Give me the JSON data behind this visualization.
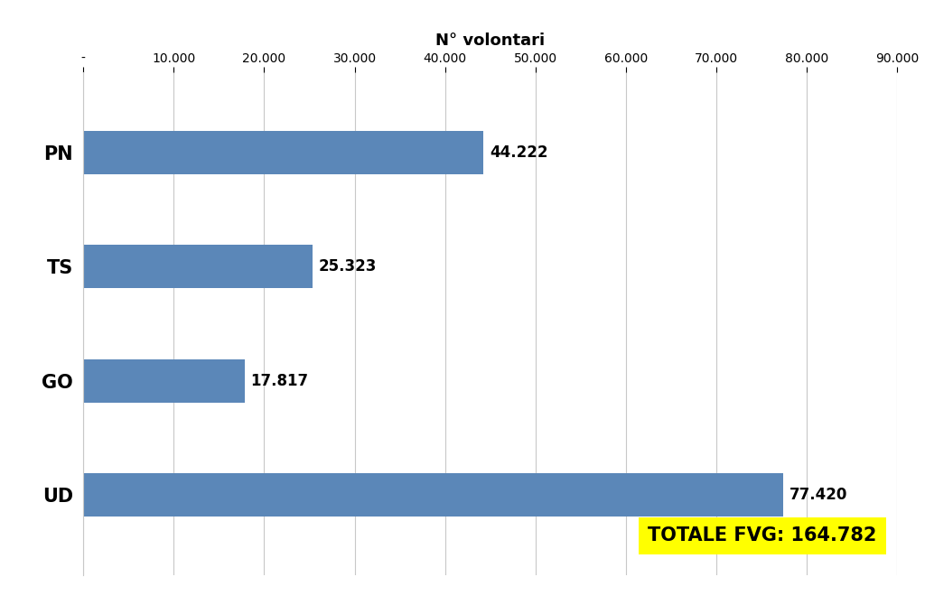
{
  "categories": [
    "UD",
    "GO",
    "TS",
    "PN"
  ],
  "values": [
    77420,
    17817,
    25323,
    44222
  ],
  "labels": [
    "77.420",
    "17.817",
    "25.323",
    "44.222"
  ],
  "bar_color": "#5b87b8",
  "xlabel": "N° volontari",
  "xlim": [
    0,
    90000
  ],
  "xticks": [
    0,
    10000,
    20000,
    30000,
    40000,
    50000,
    60000,
    70000,
    80000,
    90000
  ],
  "xtick_labels": [
    "-",
    "10.000",
    "20.000",
    "30.000",
    "40.000",
    "50.000",
    "60.000",
    "70.000",
    "80.000",
    "90.000"
  ],
  "background_color": "#ffffff",
  "totale_label": "TOTALE FVG: 164.782",
  "totale_box_color": "#ffff00",
  "xlabel_fontsize": 13,
  "tick_fontsize": 10,
  "ylabel_fontsize": 15,
  "label_fontsize": 12,
  "totale_fontsize": 15,
  "bar_height": 0.38
}
